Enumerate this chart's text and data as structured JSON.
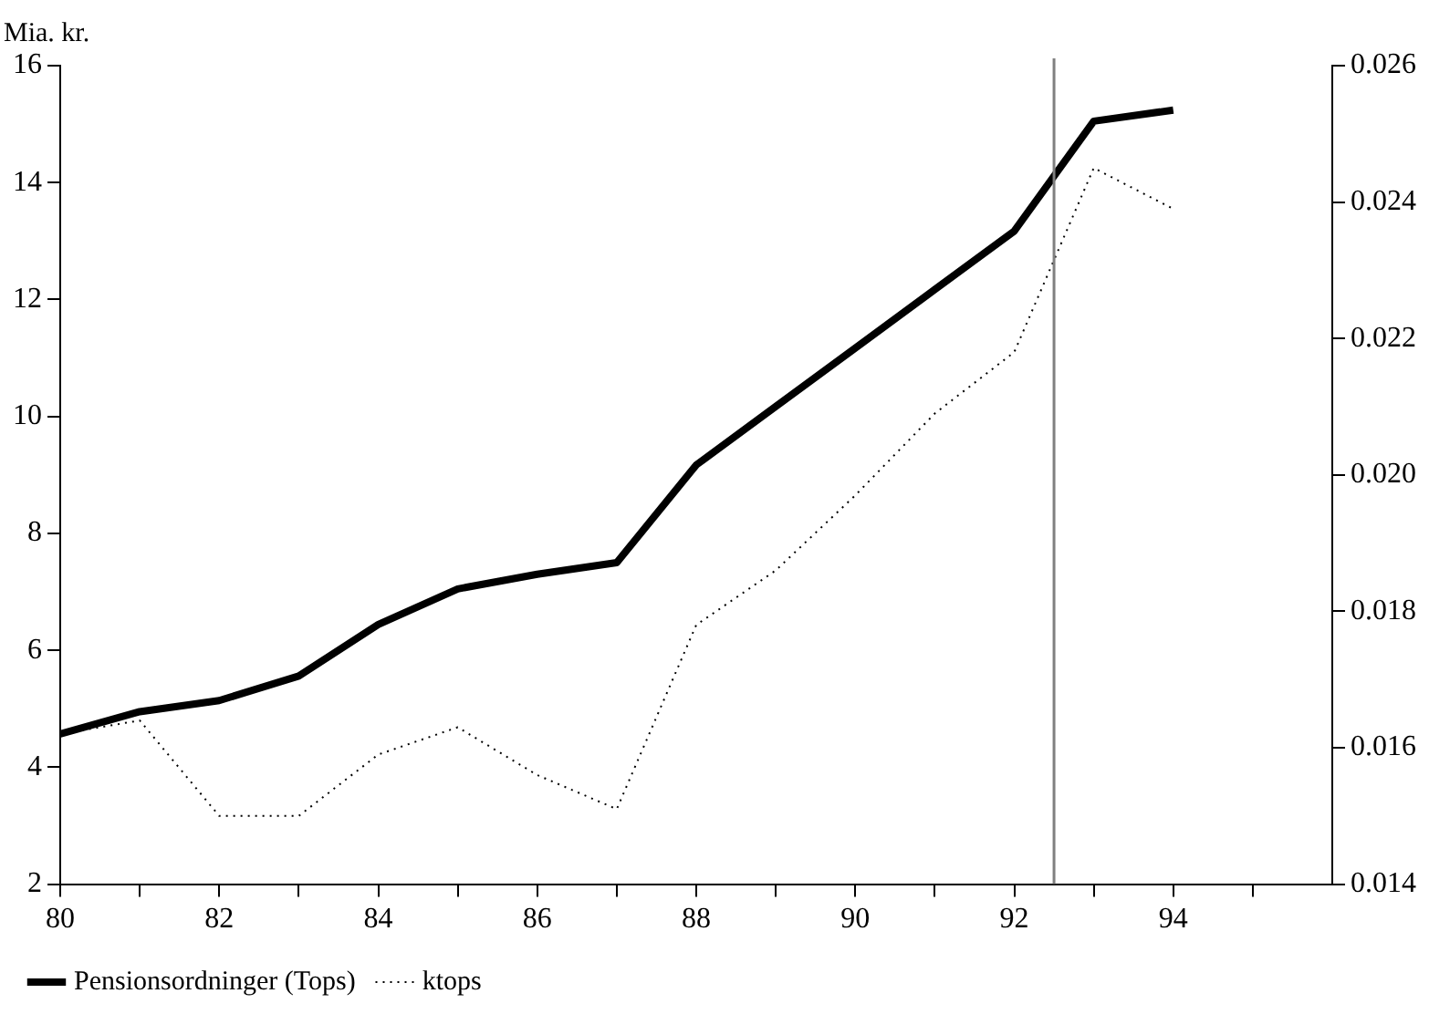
{
  "chart_data": {
    "type": "line",
    "ylabel": "Mia. kr.",
    "x": [
      80,
      81,
      82,
      83,
      84,
      85,
      86,
      87,
      88,
      89,
      90,
      91,
      92,
      93,
      94
    ],
    "series": [
      {
        "name": "Pensionsordninger (Tops)",
        "color": "#000000",
        "line_style": "solid",
        "values": [
          4.57,
          4.95,
          5.14,
          5.56,
          6.44,
          7.05,
          7.3,
          7.5,
          9.17,
          10.17,
          11.17,
          12.17,
          13.17,
          15.05,
          15.24
        ]
      },
      {
        "name": "ktops",
        "color": "#000000",
        "line_style": "dotted",
        "axis": "y2",
        "values": [
          0.0162,
          0.0164,
          0.015,
          0.015,
          0.0159,
          0.0163,
          0.0156,
          0.0151,
          0.0178,
          0.0186,
          0.0197,
          0.0209,
          0.0218,
          0.0245,
          0.0239
        ]
      }
    ],
    "xlim": [
      80,
      96
    ],
    "xticks": [
      80,
      {
        "value": 81,
        "label": null
      },
      82,
      {
        "value": 83,
        "label": null
      },
      84,
      {
        "value": 85,
        "label": null
      },
      86,
      {
        "value": 87,
        "label": null
      },
      88,
      {
        "value": 89,
        "label": null
      },
      90,
      {
        "value": 91,
        "label": null
      },
      92,
      {
        "value": 93,
        "label": null
      },
      94,
      {
        "value": 95,
        "label": null
      }
    ],
    "ylim": [
      2,
      16
    ],
    "yticks": [
      2,
      4,
      6,
      8,
      10,
      12,
      14,
      16
    ],
    "y2lim": [
      0.014,
      0.026
    ],
    "y2ticks": [
      0.014,
      0.016,
      0.018,
      {
        "value": 0.02,
        "label": "0.020"
      },
      0.022,
      0.024,
      0.026
    ],
    "ref_lines": [
      {
        "axis": "x",
        "value": 92.5,
        "color": "#808080"
      }
    ],
    "grid": false,
    "legend": "bottom left",
    "marker": "none"
  }
}
